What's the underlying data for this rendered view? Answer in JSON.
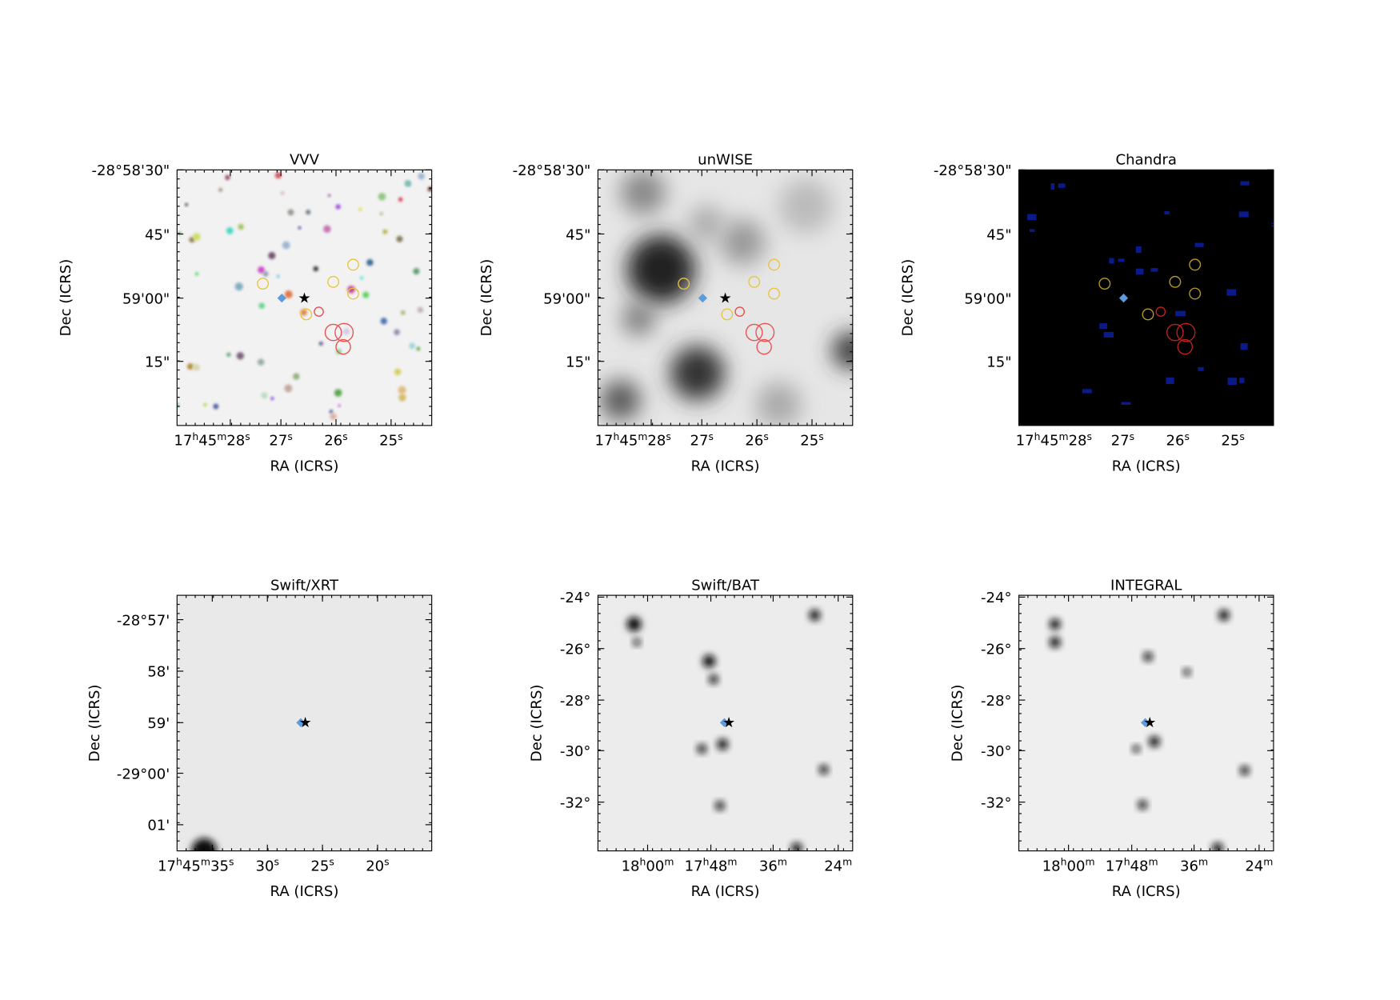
{
  "panels": [
    {
      "title": "VVV",
      "x_label": "RA (ICRS)",
      "y_label": "Dec (ICRS)",
      "x_ticks": [
        "17h45m28s",
        "27s",
        "26s",
        "25s"
      ],
      "y_ticks": [
        "-28°58'30\"",
        "45\"",
        "59'00\"",
        "15\""
      ]
    },
    {
      "title": "unWISE",
      "x_label": "RA (ICRS)",
      "y_label": "Dec (ICRS)",
      "x_ticks": [
        "17h45m28s",
        "27s",
        "26s",
        "25s"
      ],
      "y_ticks": [
        "-28°58'30\"",
        "45\"",
        "59'00\"",
        "15\""
      ]
    },
    {
      "title": "Chandra",
      "x_label": "RA (ICRS)",
      "y_label": "Dec (ICRS)",
      "x_ticks": [
        "17h45m28s",
        "27s",
        "26s",
        "25s"
      ],
      "y_ticks": [
        "-28°58'30\"",
        "45\"",
        "59'00\"",
        "15\""
      ]
    },
    {
      "title": "Swift/XRT",
      "x_label": "RA (ICRS)",
      "y_label": "Dec (ICRS)",
      "x_ticks": [
        "17h45m35s",
        "30s",
        "25s",
        "20s"
      ],
      "y_ticks": [
        "-28°57'",
        "58'",
        "59'",
        "-29°00'",
        "01'"
      ]
    },
    {
      "title": "Swift/BAT",
      "x_label": "RA (ICRS)",
      "y_label": "Dec (ICRS)",
      "x_ticks": [
        "18h00m",
        "17h48m",
        "36m",
        "24m"
      ],
      "y_ticks": [
        "-24°",
        "-26°",
        "-28°",
        "-30°",
        "-32°"
      ]
    },
    {
      "title": "INTEGRAL",
      "x_label": "RA (ICRS)",
      "y_label": "Dec (ICRS)",
      "x_ticks": [
        "18h00m",
        "17h48m",
        "36m",
        "24m"
      ],
      "y_ticks": [
        "-24°",
        "-26°",
        "-28°",
        "-30°",
        "-32°"
      ]
    }
  ]
}
